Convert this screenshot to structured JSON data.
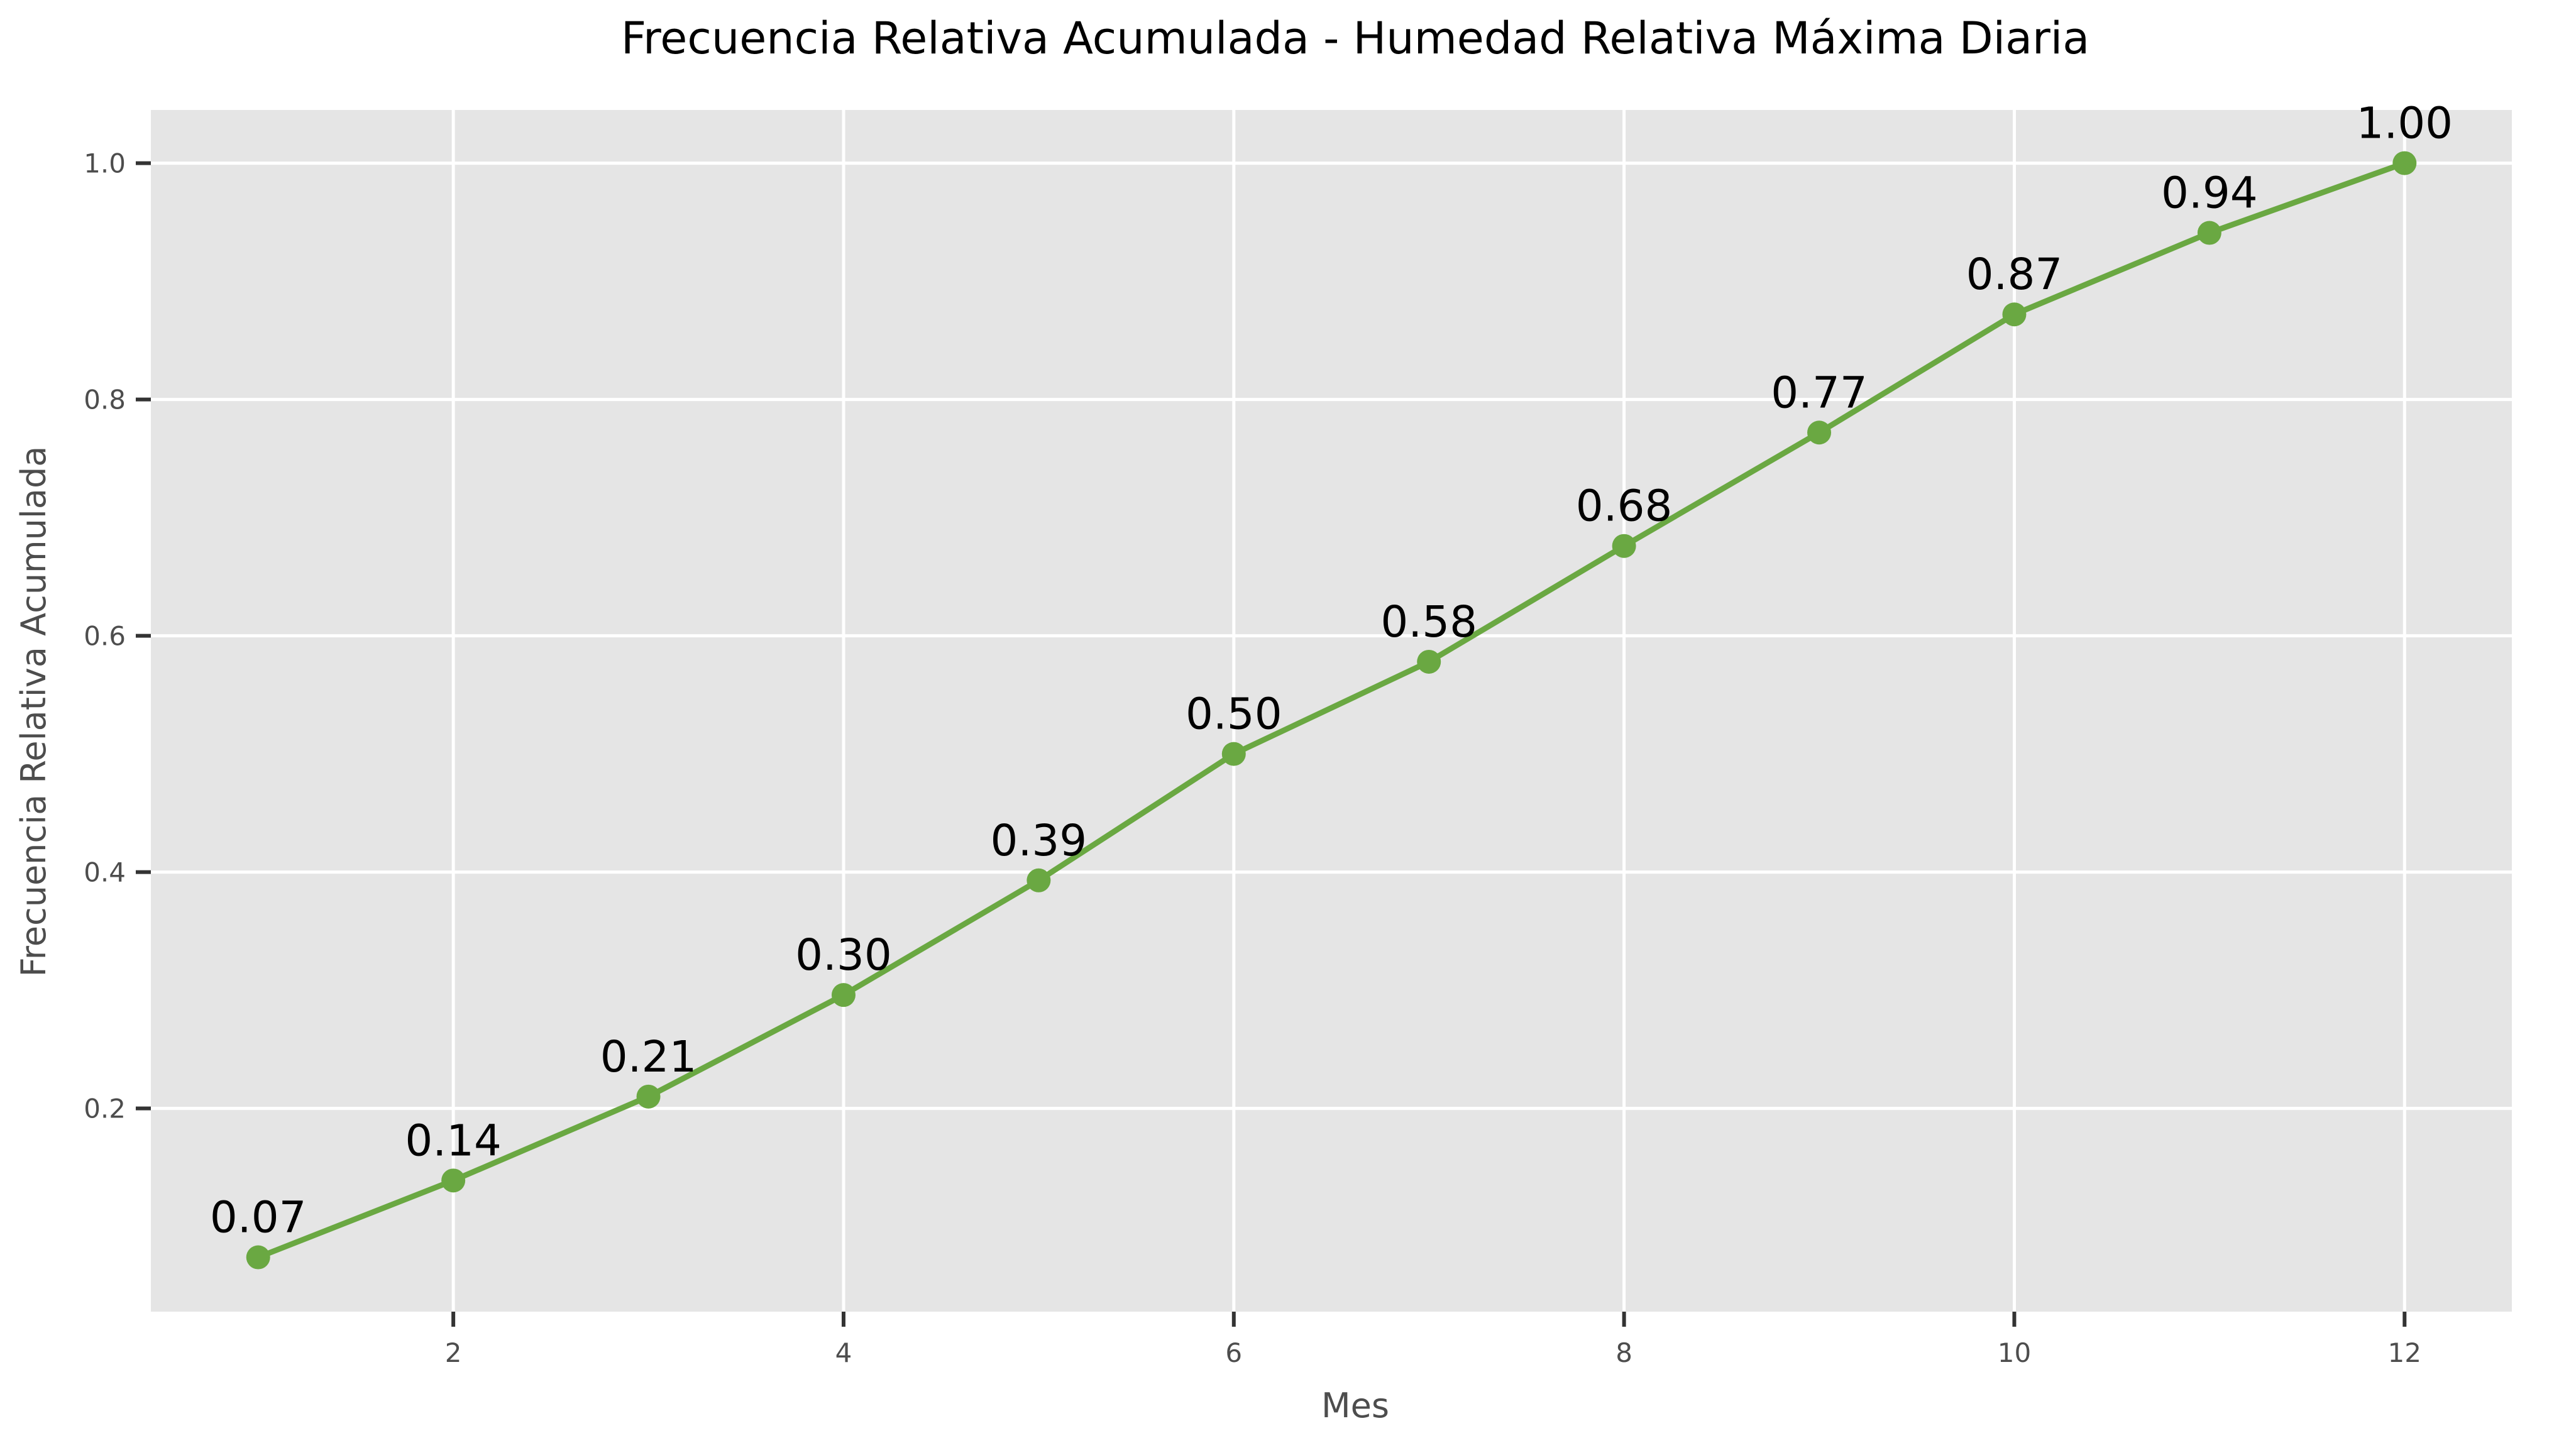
{
  "chart_data": {
    "type": "line",
    "title": "Frecuencia Relativa Acumulada - Humedad Relativa Máxima Diaria",
    "xlabel": "Mes",
    "ylabel": "Frecuencia Relativa Acumulada",
    "x": [
      1,
      2,
      3,
      4,
      5,
      6,
      7,
      8,
      9,
      10,
      11,
      12
    ],
    "values": [
      0.074,
      0.139,
      0.21,
      0.296,
      0.393,
      0.5,
      0.578,
      0.676,
      0.772,
      0.872,
      0.941,
      1.0
    ],
    "data_labels": [
      "0.07",
      "0.14",
      "0.21",
      "0.30",
      "0.39",
      "0.50",
      "0.58",
      "0.68",
      "0.77",
      "0.87",
      "0.94",
      "1.00"
    ],
    "xticks": [
      2,
      4,
      6,
      8,
      10,
      12
    ],
    "xtick_labels": [
      "2",
      "4",
      "6",
      "8",
      "10",
      "12"
    ],
    "yticks": [
      0.2,
      0.4,
      0.6,
      0.8,
      1.0
    ],
    "ytick_labels": [
      "0.2",
      "0.4",
      "0.6",
      "0.8",
      "1.0"
    ],
    "xlim": [
      0.45,
      12.55
    ],
    "ylim": [
      0.028,
      1.045
    ],
    "grid": true,
    "legend": "none",
    "colors": {
      "series": "#6aa842",
      "plot_background": "#e5e5e5",
      "grid": "#ffffff"
    }
  }
}
